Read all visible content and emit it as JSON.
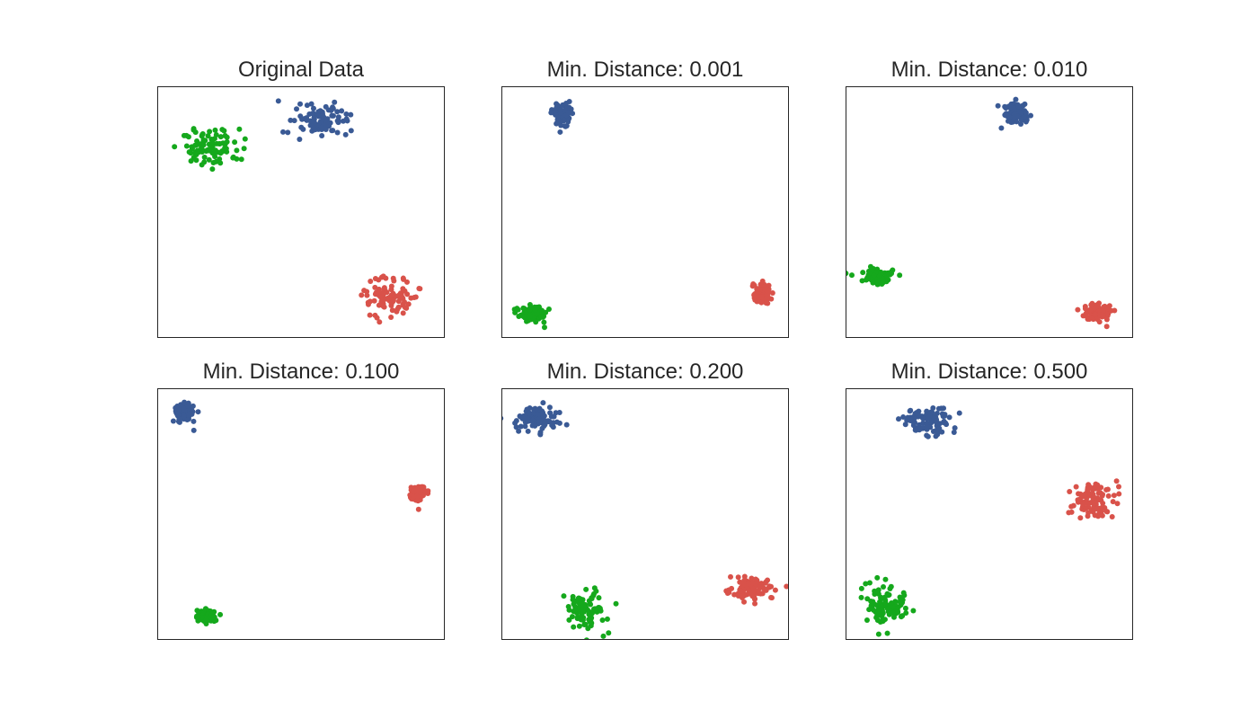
{
  "colors": {
    "blue": "#3a5a95",
    "green": "#15a81c",
    "red": "#d9524a",
    "frame": "#262626",
    "title_text": "#262626"
  },
  "chart_data": [
    {
      "type": "scatter",
      "title": "Original Data",
      "xlim": [
        0,
        1
      ],
      "ylim": [
        0,
        1
      ],
      "xticks": [],
      "yticks": [],
      "grid": false,
      "series": [
        {
          "color": "#3a5a95",
          "center": [
            0.56,
            0.86
          ],
          "spread": [
            0.05,
            0.032
          ],
          "count": 95
        },
        {
          "color": "#15a81c",
          "center": [
            0.18,
            0.76
          ],
          "spread": [
            0.05,
            0.038
          ],
          "count": 95
        },
        {
          "color": "#d9524a",
          "center": [
            0.81,
            0.16
          ],
          "spread": [
            0.05,
            0.038
          ],
          "count": 95
        }
      ]
    },
    {
      "type": "scatter",
      "title": "Min. Distance: 0.001",
      "xlim": [
        0,
        1
      ],
      "ylim": [
        0,
        1
      ],
      "xticks": [],
      "yticks": [],
      "grid": false,
      "series": [
        {
          "color": "#3a5a95",
          "center": [
            0.21,
            0.89
          ],
          "spread": [
            0.017,
            0.026
          ],
          "count": 95
        },
        {
          "color": "#15a81c",
          "center": [
            0.1,
            0.09
          ],
          "spread": [
            0.026,
            0.016
          ],
          "count": 95
        },
        {
          "color": "#d9524a",
          "center": [
            0.91,
            0.17
          ],
          "spread": [
            0.017,
            0.02
          ],
          "count": 95
        }
      ]
    },
    {
      "type": "scatter",
      "title": "Min. Distance: 0.010",
      "xlim": [
        0,
        1
      ],
      "ylim": [
        0,
        1
      ],
      "xticks": [],
      "yticks": [],
      "grid": false,
      "series": [
        {
          "color": "#3a5a95",
          "center": [
            0.59,
            0.9
          ],
          "spread": [
            0.022,
            0.023
          ],
          "count": 95
        },
        {
          "color": "#15a81c",
          "center": [
            0.11,
            0.24
          ],
          "spread": [
            0.026,
            0.017
          ],
          "count": 95
        },
        {
          "color": "#d9524a",
          "center": [
            0.88,
            0.1
          ],
          "spread": [
            0.026,
            0.018
          ],
          "count": 95
        }
      ]
    },
    {
      "type": "scatter",
      "title": "Min. Distance: 0.100",
      "xlim": [
        0,
        1
      ],
      "ylim": [
        0,
        1
      ],
      "xticks": [],
      "yticks": [],
      "grid": false,
      "series": [
        {
          "color": "#3a5a95",
          "center": [
            0.09,
            0.91
          ],
          "spread": [
            0.016,
            0.017
          ],
          "count": 95
        },
        {
          "color": "#15a81c",
          "center": [
            0.17,
            0.09
          ],
          "spread": [
            0.018,
            0.013
          ],
          "count": 95
        },
        {
          "color": "#d9524a",
          "center": [
            0.91,
            0.58
          ],
          "spread": [
            0.014,
            0.016
          ],
          "count": 95
        }
      ]
    },
    {
      "type": "scatter",
      "title": "Min. Distance: 0.200",
      "xlim": [
        0,
        1
      ],
      "ylim": [
        0,
        1
      ],
      "xticks": [],
      "yticks": [],
      "grid": false,
      "series": [
        {
          "color": "#3a5a95",
          "center": [
            0.12,
            0.88
          ],
          "spread": [
            0.038,
            0.025
          ],
          "count": 95
        },
        {
          "color": "#15a81c",
          "center": [
            0.29,
            0.11
          ],
          "spread": [
            0.033,
            0.037
          ],
          "count": 95
        },
        {
          "color": "#d9524a",
          "center": [
            0.87,
            0.2
          ],
          "spread": [
            0.036,
            0.022
          ],
          "count": 95
        }
      ]
    },
    {
      "type": "scatter",
      "title": "Min. Distance: 0.500",
      "xlim": [
        0,
        1
      ],
      "ylim": [
        0,
        1
      ],
      "xticks": [],
      "yticks": [],
      "grid": false,
      "series": [
        {
          "color": "#3a5a95",
          "center": [
            0.28,
            0.87
          ],
          "spread": [
            0.045,
            0.028
          ],
          "count": 95
        },
        {
          "color": "#15a81c",
          "center": [
            0.14,
            0.13
          ],
          "spread": [
            0.037,
            0.044
          ],
          "count": 95
        },
        {
          "color": "#d9524a",
          "center": [
            0.86,
            0.55
          ],
          "spread": [
            0.039,
            0.038
          ],
          "count": 95
        }
      ]
    }
  ]
}
